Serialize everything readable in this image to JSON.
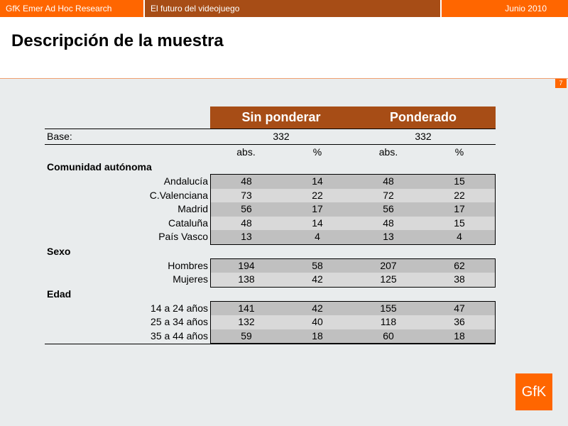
{
  "header": {
    "left": "GfK Emer Ad Hoc Research",
    "center": "El futuro del videojuego",
    "right": "Junio 2010"
  },
  "page": {
    "title": "Descripción de la muestra",
    "number": "7"
  },
  "table": {
    "col_groups": [
      "Sin ponderar",
      "Ponderado"
    ],
    "base_label": "Base:",
    "base_values": [
      "332",
      "332"
    ],
    "sub_headers": [
      "abs.",
      "%",
      "abs.",
      "%"
    ],
    "sections": [
      {
        "title": "Comunidad autónoma",
        "rows": [
          {
            "label": "Andalucía",
            "values": [
              "48",
              "14",
              "48",
              "15"
            ]
          },
          {
            "label": "C.Valenciana",
            "values": [
              "73",
              "22",
              "72",
              "22"
            ]
          },
          {
            "label": "Madrid",
            "values": [
              "56",
              "17",
              "56",
              "17"
            ]
          },
          {
            "label": "Cataluña",
            "values": [
              "48",
              "14",
              "48",
              "15"
            ]
          },
          {
            "label": "País Vasco",
            "values": [
              "13",
              "4",
              "13",
              "4"
            ]
          }
        ]
      },
      {
        "title": "Sexo",
        "rows": [
          {
            "label": "Hombres",
            "values": [
              "194",
              "58",
              "207",
              "62"
            ]
          },
          {
            "label": "Mujeres",
            "values": [
              "138",
              "42",
              "125",
              "38"
            ]
          }
        ]
      },
      {
        "title": "Edad",
        "rows": [
          {
            "label": "14 a 24 años",
            "values": [
              "141",
              "42",
              "155",
              "47"
            ]
          },
          {
            "label": "25 a 34 años",
            "values": [
              "132",
              "40",
              "118",
              "36"
            ]
          },
          {
            "label": "35 a 44 años",
            "values": [
              "59",
              "18",
              "60",
              "18"
            ]
          }
        ]
      }
    ]
  },
  "logo": {
    "text": "GfK"
  }
}
